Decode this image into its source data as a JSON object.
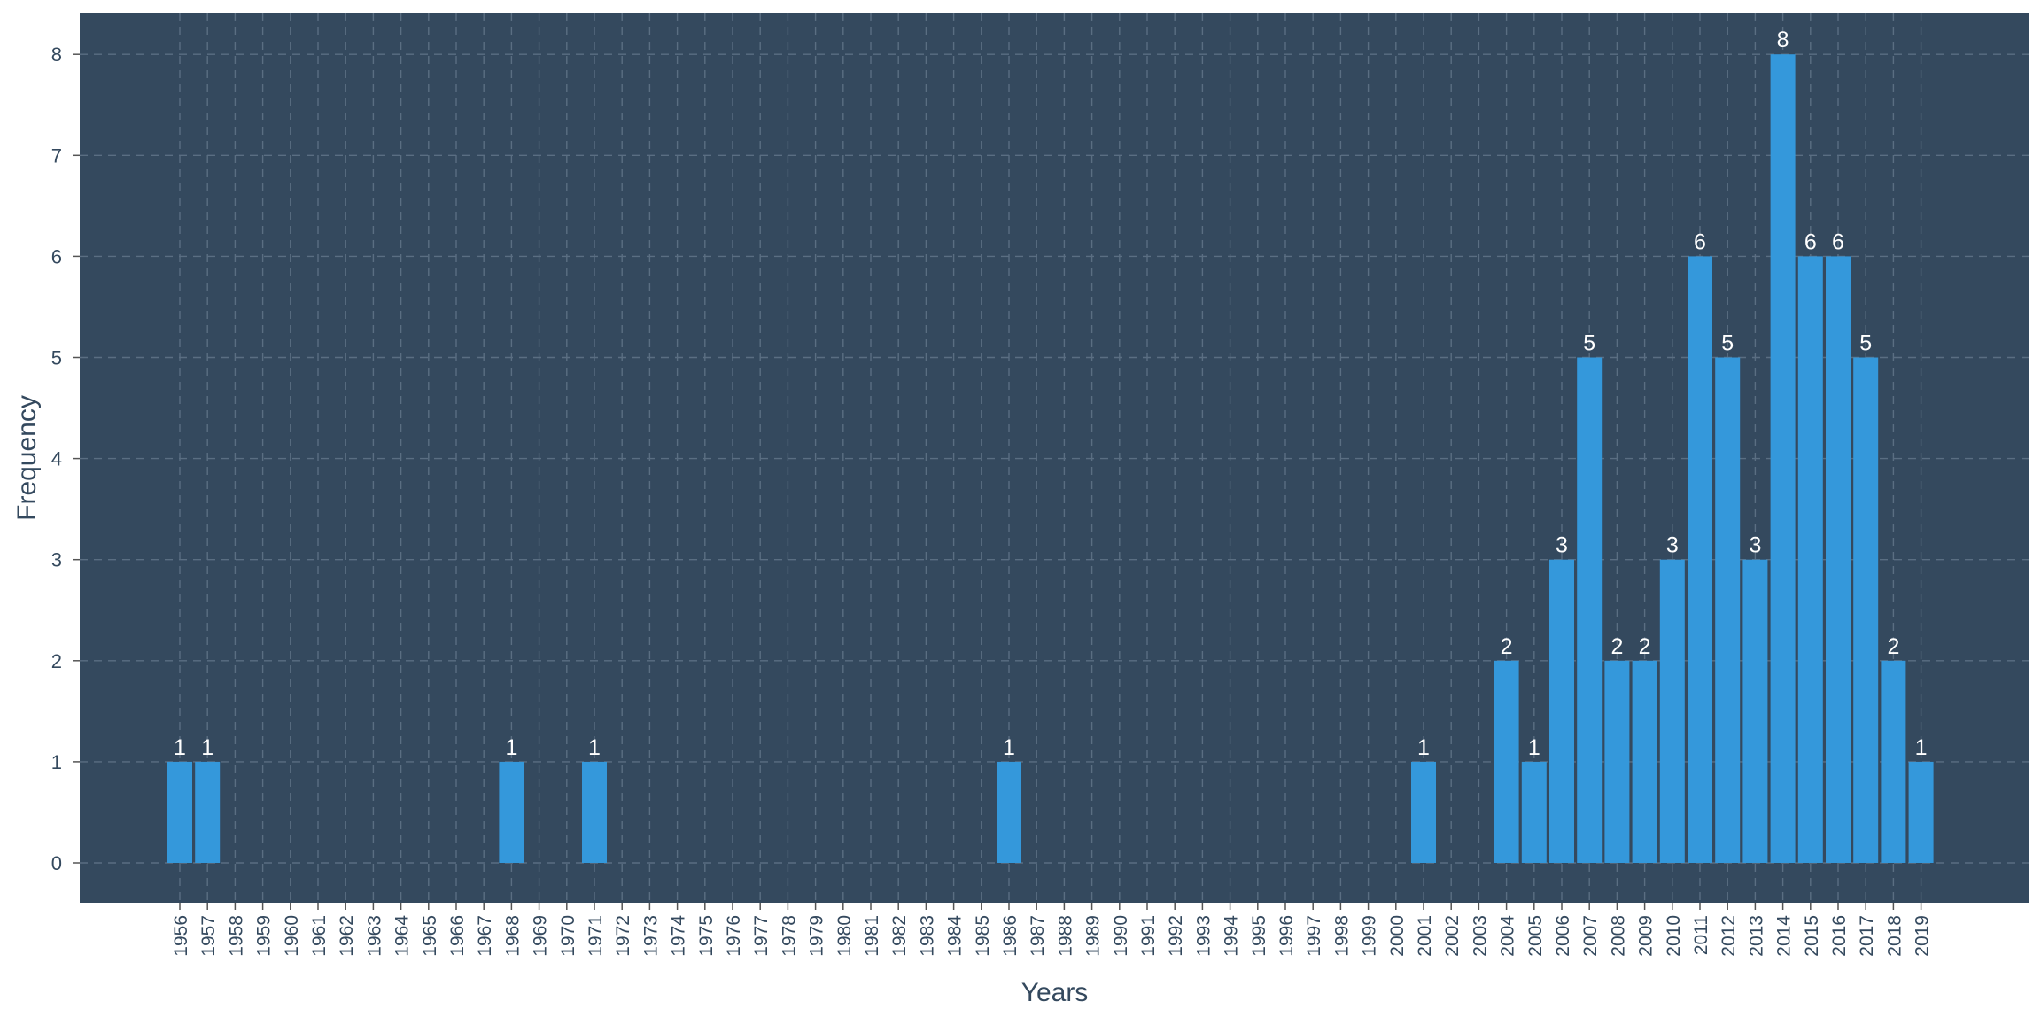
{
  "chart_data": {
    "type": "bar",
    "title": "",
    "xlabel": "Years",
    "ylabel": "Frequency",
    "ylim": [
      -0.4,
      8.4
    ],
    "yticks": [
      0,
      1,
      2,
      3,
      4,
      5,
      6,
      7,
      8
    ],
    "grid": true,
    "categories": [
      "1956",
      "1957",
      "1958",
      "1959",
      "1960",
      "1961",
      "1962",
      "1963",
      "1964",
      "1965",
      "1966",
      "1967",
      "1968",
      "1969",
      "1970",
      "1971",
      "1972",
      "1973",
      "1974",
      "1975",
      "1976",
      "1977",
      "1978",
      "1979",
      "1980",
      "1981",
      "1982",
      "1983",
      "1984",
      "1985",
      "1986",
      "1987",
      "1988",
      "1989",
      "1990",
      "1991",
      "1992",
      "1993",
      "1994",
      "1995",
      "1996",
      "1997",
      "1998",
      "1999",
      "2000",
      "2001",
      "2002",
      "2003",
      "2004",
      "2005",
      "2006",
      "2007",
      "2008",
      "2009",
      "2010",
      "2011",
      "2012",
      "2013",
      "2014",
      "2015",
      "2016",
      "2017",
      "2018",
      "2019"
    ],
    "values": [
      1,
      1,
      0,
      0,
      0,
      0,
      0,
      0,
      0,
      0,
      0,
      0,
      1,
      0,
      0,
      1,
      0,
      0,
      0,
      0,
      0,
      0,
      0,
      0,
      0,
      0,
      0,
      0,
      0,
      0,
      1,
      0,
      0,
      0,
      0,
      0,
      0,
      0,
      0,
      0,
      0,
      0,
      0,
      0,
      0,
      1,
      0,
      0,
      2,
      1,
      3,
      5,
      2,
      2,
      3,
      6,
      5,
      3,
      8,
      6,
      6,
      5,
      2,
      1
    ],
    "colors": {
      "panel_background": "#34495e",
      "bar": "#3498db",
      "grid": "#5a6e82",
      "label_text": "#ffffff",
      "tick_text": "#34495e"
    }
  }
}
